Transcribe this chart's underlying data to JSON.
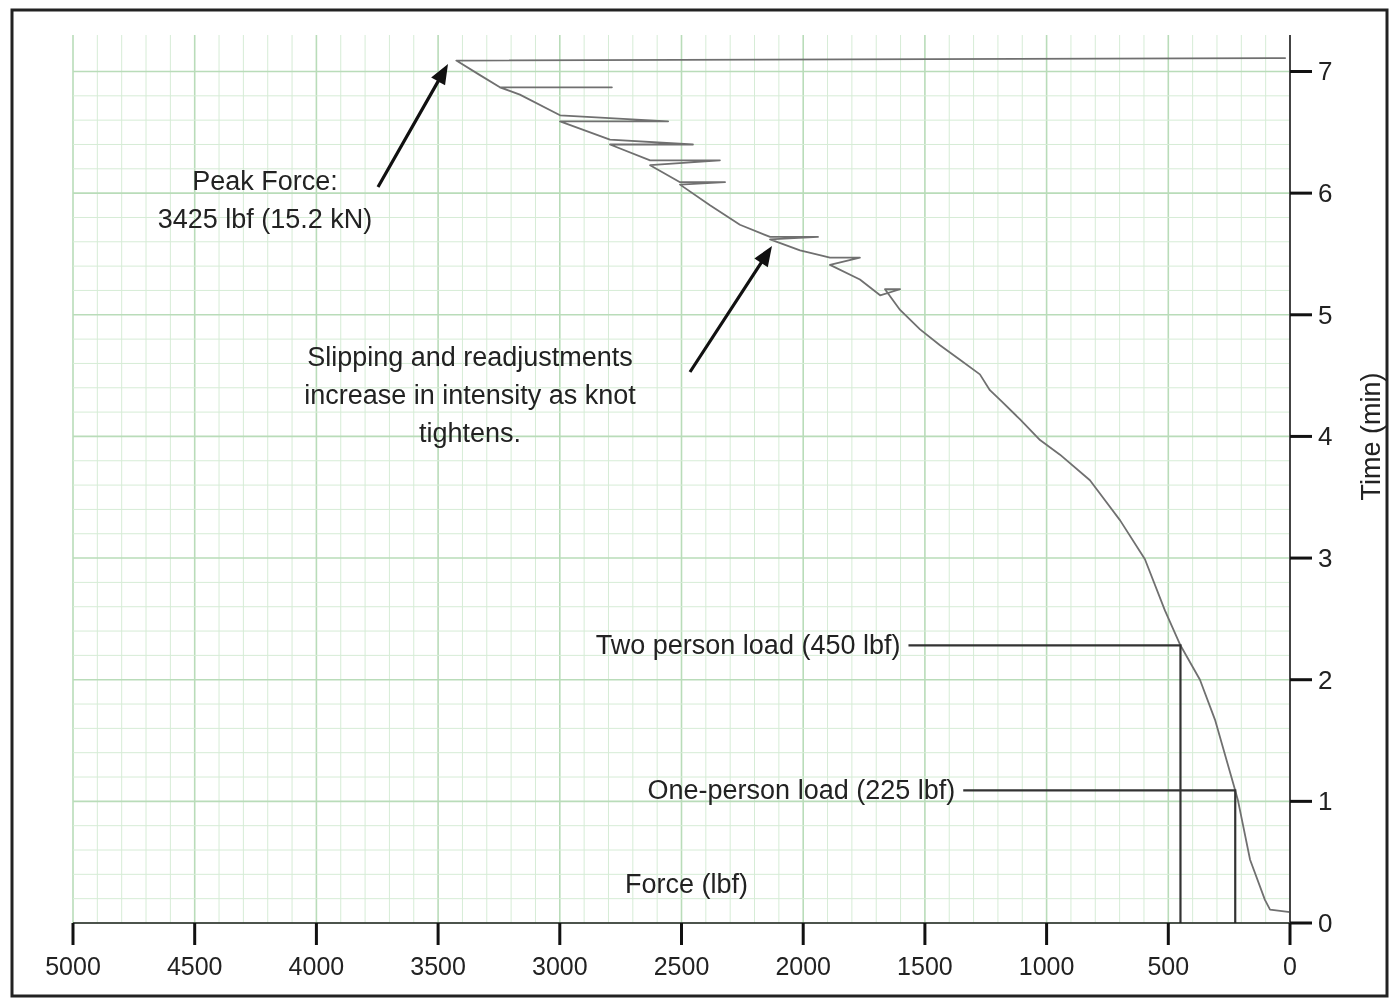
{
  "chart_data": {
    "type": "line",
    "xlabel": "Force (lbf)",
    "ylabel": "Time (min)",
    "xlim": [
      5000,
      0
    ],
    "xticks": [
      5000,
      4500,
      4000,
      3500,
      3000,
      2500,
      2000,
      1500,
      1000,
      500,
      0
    ],
    "ylim": [
      0,
      7.3
    ],
    "yticks": [
      0,
      1,
      2,
      3,
      4,
      5,
      6,
      7
    ],
    "grid": true,
    "marker": "none",
    "line_style": "solid",
    "series": [
      {
        "color": "#707070",
        "x": [
          0,
          82,
          103,
          164,
          214,
          225,
          308,
          370,
          452,
          514,
          596,
          698,
          822,
          945,
          1027,
          1109,
          1191,
          1233,
          1274,
          1356,
          1438,
          1520,
          1602,
          1664,
          1602,
          1684,
          1767,
          1890,
          1767,
          1890,
          2013,
          2136,
          1939,
          2136,
          2260,
          2383,
          2506,
          2321,
          2506,
          2629,
          2342,
          2629,
          2794,
          2453,
          2794,
          2999,
          2555,
          2999,
          3164,
          3246,
          2786,
          3246,
          3328,
          3425,
          20
        ],
        "values": [
          0.09,
          0.11,
          0.19,
          0.52,
          1.01,
          1.09,
          1.67,
          2.0,
          2.29,
          2.57,
          2.99,
          3.31,
          3.64,
          3.85,
          3.97,
          4.14,
          4.3,
          4.38,
          4.51,
          4.63,
          4.75,
          4.88,
          5.04,
          5.21,
          5.21,
          5.16,
          5.29,
          5.41,
          5.47,
          5.47,
          5.53,
          5.62,
          5.64,
          5.64,
          5.74,
          5.9,
          6.07,
          6.09,
          6.09,
          6.23,
          6.27,
          6.27,
          6.4,
          6.4,
          6.44,
          6.59,
          6.59,
          6.64,
          6.81,
          6.87,
          6.87,
          6.87,
          6.97,
          7.09,
          7.11
        ]
      }
    ],
    "ref_lines": [
      {
        "axis": "x",
        "value": 450,
        "label": "Two person load (450 lbf)",
        "color": "#333333"
      },
      {
        "axis": "x",
        "value": 225,
        "label": "One-person load (225 lbf)",
        "color": "#333333"
      }
    ],
    "annotations": [
      "Peak Force:\n3425 lbf (15.2 kN)",
      "Slipping and readjustments\nincrease in intensity as knot\ntightens."
    ]
  }
}
